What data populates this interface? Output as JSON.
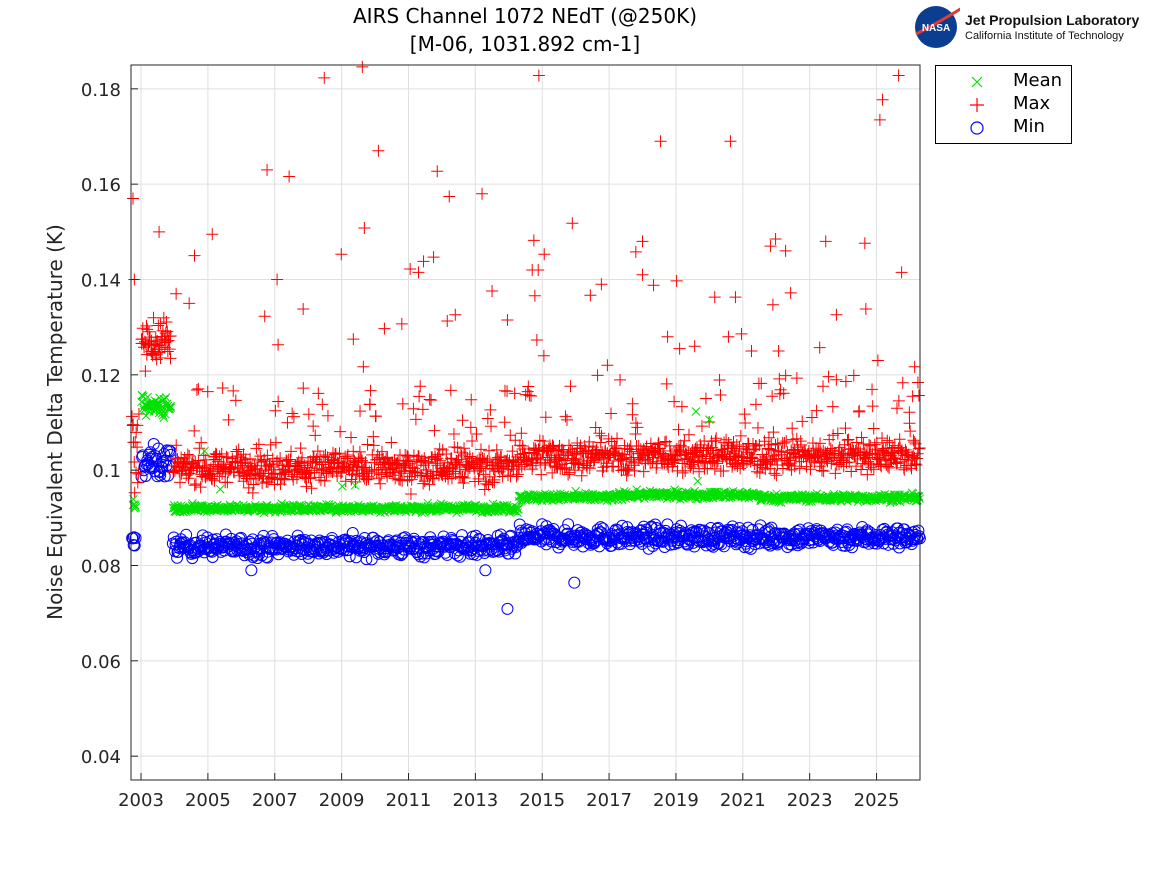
{
  "logo": {
    "line1": "Jet Propulsion Laboratory",
    "line2": "California Institute of Technology",
    "emblem_text": "NASA"
  },
  "chart_data": {
    "type": "scatter",
    "title": [
      "AIRS Channel 1072 NEdT (@250K)",
      "[M-06, 1031.892 cm-1]"
    ],
    "xlabel": "",
    "ylabel": "Noise Equivalent Delta Temperature (K)",
    "xlim": [
      2002.7,
      2026.3
    ],
    "ylim": [
      0.035,
      0.185
    ],
    "xticks": [
      2003,
      2005,
      2007,
      2009,
      2011,
      2013,
      2015,
      2017,
      2019,
      2021,
      2023,
      2025
    ],
    "yticks": [
      0.04,
      0.06,
      0.08,
      0.1,
      0.12,
      0.14,
      0.16,
      0.18
    ],
    "grid": true,
    "legend_position": "outside-top-right",
    "series": [
      {
        "name": "Mean",
        "marker": "x",
        "color": "#00e000",
        "dense_segments": [
          {
            "x": [
              2002.75,
              2002.85
            ],
            "center": 0.093,
            "spread": 0.0005,
            "tail_max": 0.093
          },
          {
            "x": [
              2003.0,
              2003.9
            ],
            "center": 0.1135,
            "spread": 0.0012,
            "tail_max": 0.118
          },
          {
            "x": [
              2003.95,
              2014.3
            ],
            "center": 0.092,
            "spread": 0.0004,
            "tail_max": 0.0925
          },
          {
            "x": [
              2014.3,
              2017.3
            ],
            "center": 0.0943,
            "spread": 0.0004,
            "tail_max": 0.0948
          },
          {
            "x": [
              2017.3,
              2021.5
            ],
            "center": 0.0948,
            "spread": 0.0004,
            "tail_max": 0.0953
          },
          {
            "x": [
              2021.5,
              2026.3
            ],
            "center": 0.0942,
            "spread": 0.0004,
            "tail_max": 0.0947
          }
        ],
        "outliers": [
          [
            2005.37,
            0.096
          ],
          [
            2009.02,
            0.0966
          ],
          [
            2009.4,
            0.0968
          ],
          [
            2016.0,
            0.0956
          ],
          [
            2019.6,
            0.1123
          ],
          [
            2019.65,
            0.0977
          ],
          [
            2020.0,
            0.1106
          ],
          [
            2020.6,
            0.0941
          ],
          [
            2004.9,
            0.104
          ],
          [
            2014.3,
            0.0935
          ]
        ]
      },
      {
        "name": "Max",
        "marker": "+",
        "color": "#ff0000",
        "dense_segments": [
          {
            "x": [
              2002.72,
              2002.95
            ],
            "center": 0.105,
            "spread": 0.004,
            "tail_max": 0.115
          },
          {
            "x": [
              2003.0,
              2003.9
            ],
            "center": 0.127,
            "spread": 0.0025,
            "tail_max": 0.133
          },
          {
            "x": [
              2003.95,
              2014.3
            ],
            "center": 0.1005,
            "spread": 0.0018,
            "tail_max": 0.118
          },
          {
            "x": [
              2014.3,
              2026.3
            ],
            "center": 0.103,
            "spread": 0.0018,
            "tail_max": 0.12
          }
        ],
        "outliers": [
          [
            2002.76,
            0.157
          ],
          [
            2002.8,
            0.14
          ],
          [
            2003.54,
            0.15
          ],
          [
            2004.05,
            0.137
          ],
          [
            2004.44,
            0.135
          ],
          [
            2004.6,
            0.145
          ],
          [
            2005.13,
            0.1495
          ],
          [
            2006.77,
            0.163
          ],
          [
            2007.43,
            0.1616
          ],
          [
            2007.07,
            0.14
          ],
          [
            2006.7,
            0.1323
          ],
          [
            2007.1,
            0.1263
          ],
          [
            2007.85,
            0.1338
          ],
          [
            2008.48,
            0.1823
          ],
          [
            2008.99,
            0.1453
          ],
          [
            2009.35,
            0.1275
          ],
          [
            2009.62,
            0.1846
          ],
          [
            2009.68,
            0.1508
          ],
          [
            2009.65,
            0.1217
          ],
          [
            2010.1,
            0.167
          ],
          [
            2010.28,
            0.1297
          ],
          [
            2010.8,
            0.1307
          ],
          [
            2011.05,
            0.1422
          ],
          [
            2011.3,
            0.1415
          ],
          [
            2011.45,
            0.1438
          ],
          [
            2011.75,
            0.1447
          ],
          [
            2011.86,
            0.1627
          ],
          [
            2012.22,
            0.1574
          ],
          [
            2012.16,
            0.1313
          ],
          [
            2012.4,
            0.1326
          ],
          [
            2013.2,
            0.158
          ],
          [
            2013.5,
            0.1376
          ],
          [
            2013.96,
            0.1315
          ],
          [
            2014.75,
            0.1482
          ],
          [
            2014.7,
            0.142
          ],
          [
            2014.88,
            0.142
          ],
          [
            2014.78,
            0.1366
          ],
          [
            2014.9,
            0.1828
          ],
          [
            2014.84,
            0.1273
          ],
          [
            2015.05,
            0.124
          ],
          [
            2015.06,
            0.1453
          ],
          [
            2015.9,
            0.1518
          ],
          [
            2016.44,
            0.1367
          ],
          [
            2016.77,
            0.139
          ],
          [
            2016.95,
            0.122
          ],
          [
            2017.8,
            0.1458
          ],
          [
            2018.0,
            0.148
          ],
          [
            2018.0,
            0.141
          ],
          [
            2018.33,
            0.1388
          ],
          [
            2018.54,
            0.169
          ],
          [
            2018.75,
            0.128
          ],
          [
            2019.02,
            0.1397
          ],
          [
            2019.11,
            0.1255
          ],
          [
            2019.56,
            0.126
          ],
          [
            2020.16,
            0.1363
          ],
          [
            2020.63,
            0.169
          ],
          [
            2020.78,
            0.1363
          ],
          [
            2020.57,
            0.128
          ],
          [
            2020.96,
            0.1286
          ],
          [
            2021.26,
            0.125
          ],
          [
            2021.83,
            0.147
          ],
          [
            2021.98,
            0.1485
          ],
          [
            2021.9,
            0.1347
          ],
          [
            2022.28,
            0.146
          ],
          [
            2022.43,
            0.1372
          ],
          [
            2022.07,
            0.125
          ],
          [
            2023.3,
            0.1257
          ],
          [
            2023.48,
            0.148
          ],
          [
            2023.8,
            0.1326
          ],
          [
            2024.65,
            0.1476
          ],
          [
            2024.68,
            0.1338
          ],
          [
            2025.04,
            0.123
          ],
          [
            2025.1,
            0.1735
          ],
          [
            2025.18,
            0.1777
          ],
          [
            2025.66,
            0.1828
          ],
          [
            2025.75,
            0.1415
          ],
          [
            2026.08,
            0.1155
          ],
          [
            2026.14,
            0.1217
          ]
        ]
      },
      {
        "name": "Min",
        "marker": "o",
        "color": "#0000ff",
        "dense_segments": [
          {
            "x": [
              2002.72,
              2002.85
            ],
            "center": 0.0845,
            "spread": 0.0012,
            "tail_max": 0.087
          },
          {
            "x": [
              2003.0,
              2003.9
            ],
            "center": 0.1015,
            "spread": 0.0018,
            "tail_max": 0.108
          },
          {
            "x": [
              2003.95,
              2014.3
            ],
            "center": 0.084,
            "spread": 0.0011,
            "tail_max": 0.0865
          },
          {
            "x": [
              2014.3,
              2026.3
            ],
            "center": 0.086,
            "spread": 0.0011,
            "tail_max": 0.0885
          }
        ],
        "outliers": [
          [
            2013.96,
            0.0709
          ],
          [
            2015.96,
            0.0764
          ],
          [
            2006.3,
            0.079
          ],
          [
            2013.3,
            0.079
          ]
        ]
      }
    ]
  }
}
